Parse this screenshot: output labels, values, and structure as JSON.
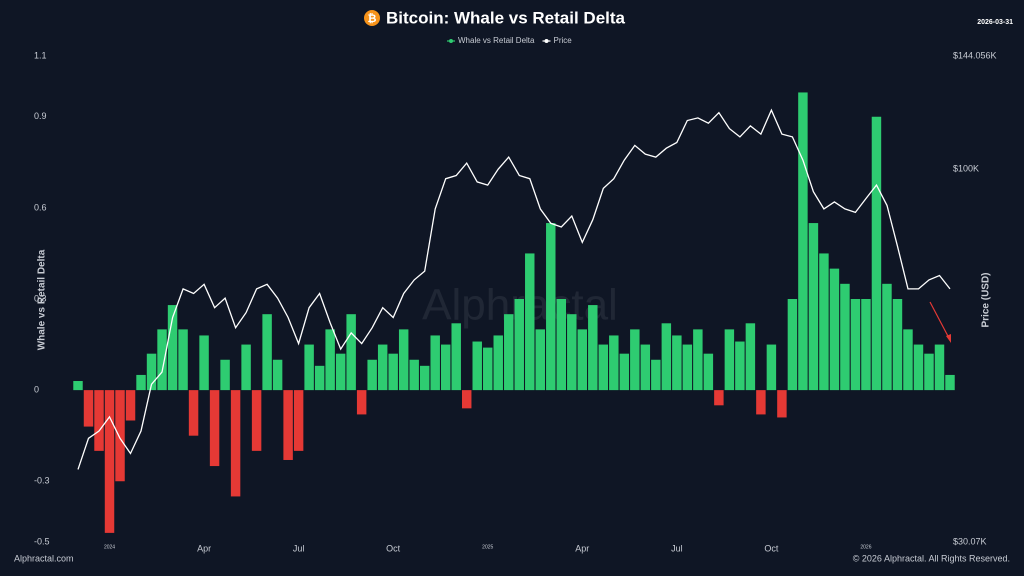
{
  "chart_data": {
    "type": "bar-line",
    "title": "Bitcoin: Whale vs Retail Delta",
    "title_icon": "₿",
    "date": "2026-03-31",
    "y_label": "Whale vs Retail Delta",
    "y2_label": "Price (USD)",
    "watermark": "Alphractal",
    "source": "Alphractal.com",
    "copyright": "© 2026 Alphractal. All Rights Reserved.",
    "categories": [
      null,
      null,
      null,
      "2024",
      null,
      null,
      null,
      null,
      null,
      null,
      null,
      null,
      "Apr",
      null,
      null,
      null,
      null,
      null,
      null,
      null,
      null,
      "Jul",
      null,
      null,
      null,
      null,
      null,
      null,
      null,
      null,
      "Oct",
      null,
      null,
      null,
      null,
      null,
      null,
      null,
      null,
      "2025",
      null,
      null,
      null,
      null,
      null,
      null,
      null,
      null,
      "Apr",
      null,
      null,
      null,
      null,
      null,
      null,
      null,
      null,
      "Jul",
      null,
      null,
      null,
      null,
      null,
      null,
      null,
      null,
      "Oct",
      null,
      null,
      null,
      null,
      null,
      null,
      null,
      null,
      "2026",
      null,
      null,
      null,
      null,
      null,
      null,
      null,
      null
    ],
    "series": [
      {
        "name": "Whale vs Retail Delta",
        "color": "#2ecc71",
        "negative_color": "#e53935",
        "values": [
          0.03,
          -0.12,
          -0.2,
          -0.47,
          -0.3,
          -0.1,
          0.05,
          0.12,
          0.2,
          0.28,
          0.2,
          -0.15,
          0.18,
          -0.25,
          0.1,
          -0.35,
          0.15,
          -0.2,
          0.25,
          0.1,
          -0.23,
          -0.2,
          0.15,
          0.08,
          0.2,
          0.12,
          0.25,
          -0.08,
          0.1,
          0.15,
          0.12,
          0.2,
          0.1,
          0.08,
          0.18,
          0.15,
          0.22,
          -0.06,
          0.16,
          0.14,
          0.18,
          0.25,
          0.3,
          0.45,
          0.2,
          0.55,
          0.3,
          0.25,
          0.2,
          0.28,
          0.15,
          0.18,
          0.12,
          0.2,
          0.15,
          0.1,
          0.22,
          0.18,
          0.15,
          0.2,
          0.12,
          -0.05,
          0.2,
          0.16,
          0.22,
          -0.08,
          0.15,
          -0.09,
          0.3,
          0.98,
          0.55,
          0.45,
          0.4,
          0.35,
          0.3,
          0.3,
          0.9,
          0.35,
          0.3,
          0.2,
          0.15,
          0.12,
          0.15,
          0.05
        ]
      },
      {
        "name": "Price",
        "color": "#ffffff",
        "axis": "y2",
        "values": [
          38000,
          42000,
          43000,
          45000,
          42000,
          40000,
          43000,
          50000,
          52000,
          62000,
          68000,
          67000,
          69000,
          64000,
          66000,
          60000,
          63000,
          68000,
          69000,
          66000,
          62000,
          57000,
          64000,
          67000,
          61000,
          56000,
          59000,
          57000,
          60000,
          64000,
          62000,
          67000,
          70000,
          72000,
          88000,
          97000,
          98000,
          102000,
          96000,
          95000,
          100000,
          104000,
          98000,
          97000,
          88000,
          84000,
          83000,
          86000,
          79000,
          85000,
          94000,
          97000,
          103000,
          108000,
          105000,
          104000,
          107000,
          109000,
          117000,
          118000,
          116000,
          120000,
          114000,
          111000,
          115000,
          112000,
          121000,
          112000,
          111000,
          103000,
          93000,
          88000,
          90000,
          88000,
          87000,
          91000,
          95000,
          89000,
          78000,
          68000,
          68000,
          70000,
          71000,
          68000
        ]
      }
    ],
    "ylim": [
      -0.5,
      1.1
    ],
    "yticks": [
      -0.5,
      -0.3,
      0,
      0.3,
      0.6,
      0.9,
      1.1
    ],
    "y2lim": [
      30070,
      144056
    ],
    "y2_log": true,
    "y2ticks": [
      {
        "value": 30070,
        "label": "$30.07K"
      },
      {
        "value": 100000,
        "label": "$100K"
      },
      {
        "value": 144056,
        "label": "$144.056K"
      }
    ]
  }
}
